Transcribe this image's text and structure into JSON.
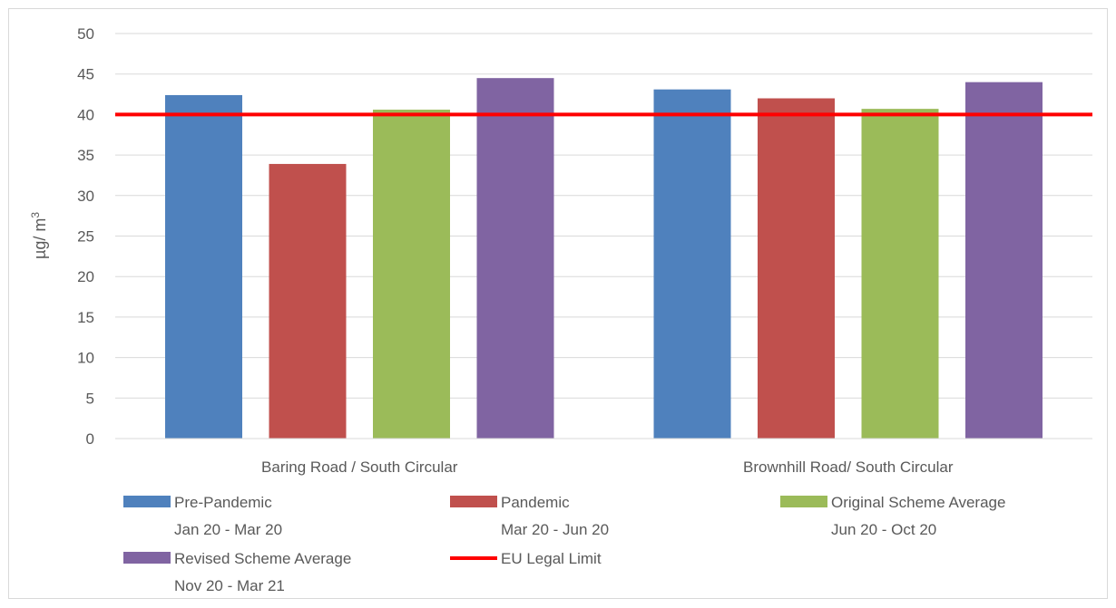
{
  "chart_data": {
    "type": "bar",
    "title": "",
    "xlabel": "",
    "ylabel": "µg/ m",
    "ylabel_superscript": "3",
    "ylim": [
      0,
      50
    ],
    "yticks": [
      0,
      5,
      10,
      15,
      20,
      25,
      30,
      35,
      40,
      45,
      50
    ],
    "grid": true,
    "legend_position": "bottom",
    "categories": [
      "Baring Road / South Circular",
      "Brownhill Road/ South Circular"
    ],
    "series": [
      {
        "name": "Pre-Pandemic",
        "subtitle": "Jan 20 - Mar 20",
        "color": "#4f81bd",
        "values": [
          42.4,
          43.1
        ]
      },
      {
        "name": "Pandemic",
        "subtitle": "Mar 20 - Jun 20",
        "color": "#c0504d",
        "values": [
          33.9,
          42.0
        ]
      },
      {
        "name": "Original Scheme Average",
        "subtitle": "Jun 20 - Oct 20",
        "color": "#9bbb59",
        "values": [
          40.6,
          40.7
        ]
      },
      {
        "name": "Revised Scheme Average",
        "subtitle": "Nov 20 - Mar 21",
        "color": "#8064a2",
        "values": [
          44.5,
          44.0
        ]
      }
    ],
    "reference_line": {
      "name": "EU Legal Limit",
      "value": 40,
      "color": "#ff0000"
    }
  }
}
